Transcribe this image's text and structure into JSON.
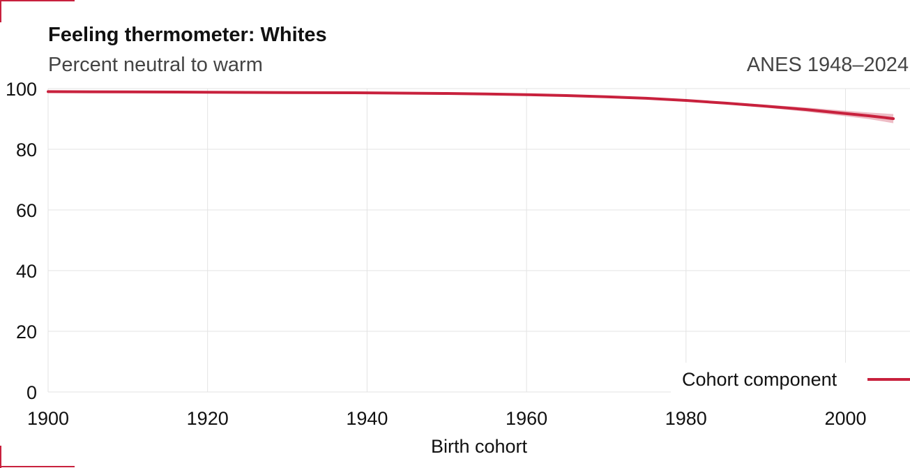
{
  "title": "Feeling thermometer: Whites",
  "subtitle": "Percent neutral to warm",
  "source": "ANES 1948–2024",
  "colors": {
    "line": "#c8213d",
    "band": "#e8a5b1",
    "grid": "#e3e3e3",
    "text": "#111111",
    "muted": "#444444"
  },
  "chart_data": {
    "type": "line",
    "xlabel": "Birth cohort",
    "ylabel": "",
    "xlim": [
      1900,
      2007
    ],
    "ylim": [
      0,
      100
    ],
    "x_ticks": [
      1900,
      1920,
      1940,
      1960,
      1980,
      2000
    ],
    "y_ticks": [
      0,
      20,
      40,
      60,
      80,
      100
    ],
    "grid": true,
    "legend_position": "bottom-right",
    "series": [
      {
        "name": "Cohort component",
        "x": [
          1900,
          1910,
          1920,
          1930,
          1940,
          1950,
          1955,
          1960,
          1965,
          1970,
          1975,
          1980,
          1985,
          1990,
          1995,
          2000,
          2003,
          2006
        ],
        "y": [
          99.0,
          98.9,
          98.8,
          98.7,
          98.6,
          98.4,
          98.2,
          98.0,
          97.7,
          97.3,
          96.8,
          96.1,
          95.2,
          94.2,
          93.1,
          91.8,
          91.0,
          90.1
        ],
        "lower": [
          98.9,
          98.8,
          98.7,
          98.6,
          98.5,
          98.3,
          98.1,
          97.9,
          97.5,
          97.1,
          96.6,
          95.8,
          94.8,
          93.7,
          92.4,
          90.9,
          89.9,
          88.6
        ],
        "upper": [
          99.1,
          99.0,
          98.9,
          98.8,
          98.7,
          98.5,
          98.3,
          98.1,
          97.9,
          97.5,
          97.0,
          96.4,
          95.6,
          94.7,
          93.8,
          92.7,
          92.1,
          91.6
        ]
      }
    ]
  }
}
